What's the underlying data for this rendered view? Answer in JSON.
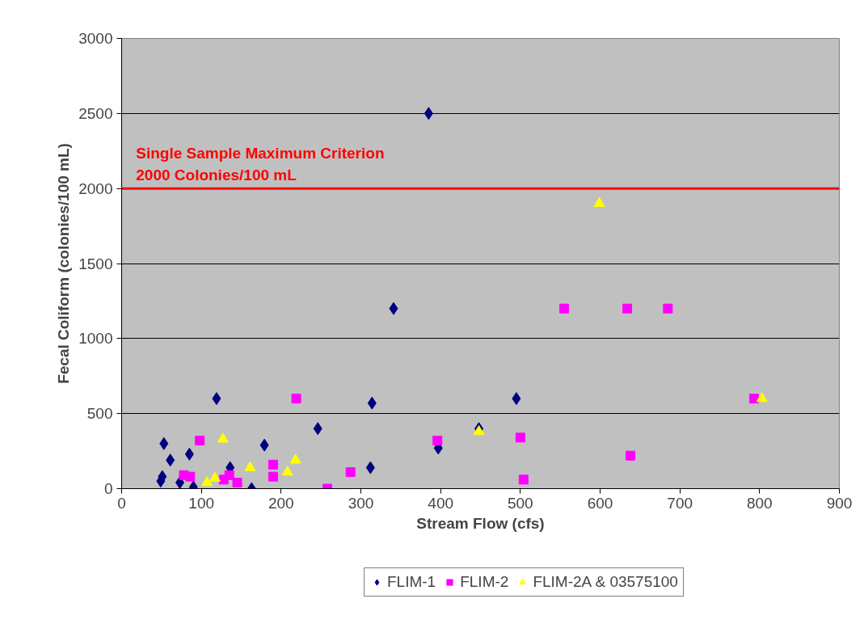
{
  "chart_data": {
    "type": "scatter",
    "xlabel": "Stream Flow (cfs)",
    "ylabel": "Fecal Coliform (colonies/100 mL)",
    "xlim": [
      0,
      900
    ],
    "xticks": [
      0,
      100,
      200,
      300,
      400,
      500,
      600,
      700,
      800,
      900
    ],
    "ylim": [
      0,
      3000
    ],
    "yticks": [
      0,
      500,
      1000,
      1500,
      2000,
      2500,
      3000
    ],
    "grid": "y",
    "legend": "bottom",
    "ref_lines": [
      {
        "axis": "y",
        "value": 2000,
        "label": "Single Sample Maximum Criterion\n2000 Colonies/100 mL",
        "color": "#ff0000",
        "line_style": "solid"
      }
    ],
    "series": [
      {
        "name": "FLIM-1",
        "color": "#000080",
        "marker": "diamond",
        "x": [
          49,
          51,
          53,
          61,
          73,
          85,
          90,
          119,
          136,
          163,
          179,
          246,
          312,
          314,
          341,
          385,
          397,
          448,
          495
        ],
        "values": [
          50,
          80,
          300,
          190,
          40,
          230,
          10,
          600,
          140,
          0,
          290,
          400,
          140,
          570,
          1200,
          2500,
          270,
          400,
          600
        ]
      },
      {
        "name": "FLIM-2",
        "color": "#ff00ff",
        "marker": "square",
        "x": [
          78,
          86,
          98,
          128,
          135,
          145,
          190,
          190,
          219,
          258,
          287,
          396,
          500,
          504,
          555,
          634,
          638,
          685,
          793
        ],
        "values": [
          90,
          80,
          320,
          60,
          90,
          40,
          160,
          80,
          600,
          0,
          110,
          320,
          340,
          60,
          1200,
          1200,
          220,
          1200,
          600
        ]
      },
      {
        "name": "FLIM-2A & 03575100",
        "color": "#ffff00",
        "marker": "triangle",
        "x": [
          107,
          117,
          127,
          161,
          208,
          218,
          448,
          599,
          803
        ],
        "values": [
          40,
          70,
          330,
          140,
          110,
          190,
          380,
          1900,
          600
        ]
      }
    ]
  }
}
